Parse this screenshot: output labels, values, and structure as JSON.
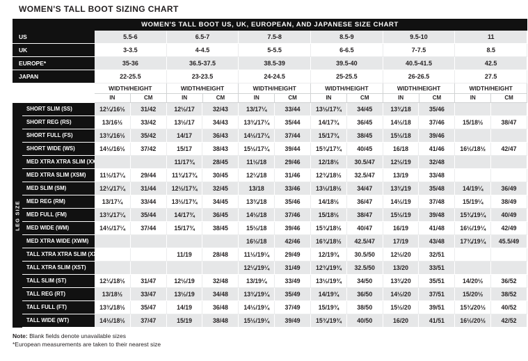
{
  "page": {
    "title": "WOMEN'S TALL BOOT SIZING CHART",
    "banner": "WOMEN'S TALL BOOT US, UK, EUROPEAN, AND JAPANESE SIZE CHART"
  },
  "size_rows": [
    {
      "label": "US",
      "values": [
        "5.5-6",
        "6.5-7",
        "7.5-8",
        "8.5-9",
        "9.5-10",
        "11"
      ]
    },
    {
      "label": "UK",
      "values": [
        "3-3.5",
        "4-4.5",
        "5-5.5",
        "6-6.5",
        "7-7.5",
        "8.5"
      ]
    },
    {
      "label": "EUROPE*",
      "values": [
        "35-36",
        "36.5-37.5",
        "38.5-39",
        "39.5-40",
        "40.5-41.5",
        "42.5"
      ]
    },
    {
      "label": "JAPAN",
      "values": [
        "22-25.5",
        "23-23.5",
        "24-24.5",
        "25-25.5",
        "26-26.5",
        "27.5"
      ]
    }
  ],
  "measure_header": {
    "group_label": "WIDTH/HEIGHT",
    "col_in": "IN",
    "col_cm": "CM",
    "groups": 6
  },
  "leg_size_label": "LEG SIZE",
  "leg_rows": [
    {
      "label": "SHORT SLIM (SS)",
      "cells": [
        "12¼/16½",
        "31/42",
        "12½/17",
        "32/43",
        "13/17¼",
        "33/44",
        "13½/17¾",
        "34/45",
        "13¾/18",
        "35/46",
        "",
        ""
      ]
    },
    {
      "label": "SHORT REG (RS)",
      "cells": [
        "13/16½",
        "33/42",
        "13½/17",
        "34/43",
        "13¾/17¼",
        "35/44",
        "14/17¾",
        "36/45",
        "14½/18",
        "37/46",
        "15/18½",
        "38/47"
      ]
    },
    {
      "label": "SHORT FULL (FS)",
      "cells": [
        "13¾/16½",
        "35/42",
        "14/17",
        "36/43",
        "14½/17¼",
        "37/44",
        "15/17¾",
        "38/45",
        "15½/18",
        "39/46",
        "",
        ""
      ]
    },
    {
      "label": "SHORT WIDE (WS)",
      "cells": [
        "14½/16½",
        "37/42",
        "15/17",
        "38/43",
        "15½/17¼",
        "39/44",
        "15¾/17¾",
        "40/45",
        "16/18",
        "41/46",
        "16½/18½",
        "42/47"
      ]
    },
    {
      "label": "MED XTRA XTRA SLIM (XXSM)",
      "cells": [
        "",
        "",
        "11/17¾",
        "28/45",
        "11½/18",
        "29/46",
        "12/18½",
        "30.5/47",
        "12½/19",
        "32/48",
        "",
        ""
      ]
    },
    {
      "label": "MED XTRA SLIM (XSM)",
      "cells": [
        "11½/17¼",
        "29/44",
        "11¾/17¾",
        "30/45",
        "12¼/18",
        "31/46",
        "12¾/18½",
        "32.5/47",
        "13/19",
        "33/48",
        "",
        ""
      ]
    },
    {
      "label": "MED SLIM (SM)",
      "cells": [
        "12¼/17¼",
        "31/44",
        "12½/17¾",
        "32/45",
        "13/18",
        "33/46",
        "13½/18½",
        "34/47",
        "13¾/19",
        "35/48",
        "14/19¼",
        "36/49"
      ]
    },
    {
      "label": "MED REG (RM)",
      "cells": [
        "13/17¼",
        "33/44",
        "13½/17¾",
        "34/45",
        "13¾/18",
        "35/46",
        "14/18½",
        "36/47",
        "14½/19",
        "37/48",
        "15/19¼",
        "38/49"
      ]
    },
    {
      "label": "MED FULL (FM)",
      "cells": [
        "13¾/17¼",
        "35/44",
        "14/17¾",
        "36/45",
        "14½/18",
        "37/46",
        "15/18½",
        "38/47",
        "15½/19",
        "39/48",
        "15¾/19¼",
        "40/49"
      ]
    },
    {
      "label": "MED WIDE (WM)",
      "cells": [
        "14½/17¼",
        "37/44",
        "15/17¾",
        "38/45",
        "15½/18",
        "39/46",
        "15¾/18½",
        "40/47",
        "16/19",
        "41/48",
        "16½/19¼",
        "42/49"
      ]
    },
    {
      "label": "MED XTRA WIDE (XWM)",
      "cells": [
        "",
        "",
        "",
        "",
        "16½/18",
        "42/46",
        "16¾/18½",
        "42.5/47",
        "17/19",
        "43/48",
        "17¾/19¼",
        "45.5/49"
      ]
    },
    {
      "label": "TALL XTRA XTRA SLIM (XXST)",
      "cells": [
        "",
        "",
        "11/19",
        "28/48",
        "11½/19¼",
        "29/49",
        "12/19¾",
        "30.5/50",
        "12½/20",
        "32/51",
        "",
        ""
      ]
    },
    {
      "label": "TALL XTRA SLIM (XST)",
      "cells": [
        "",
        "",
        "",
        "",
        "12¼/19¼",
        "31/49",
        "12¾/19¾",
        "32.5/50",
        "13/20",
        "33/51",
        "",
        ""
      ]
    },
    {
      "label": "TALL SLIM (ST)",
      "cells": [
        "12¼/18½",
        "31/47",
        "12½/19",
        "32/48",
        "13/19¼",
        "33/49",
        "13½/19¾",
        "34/50",
        "13¾/20",
        "35/51",
        "14/20½",
        "36/52"
      ]
    },
    {
      "label": "TALL REG (RT)",
      "cells": [
        "13/18½",
        "33/47",
        "13½/19",
        "34/48",
        "13¾/19¼",
        "35/49",
        "14/19¾",
        "36/50",
        "14½/20",
        "37/51",
        "15/20½",
        "38/52"
      ]
    },
    {
      "label": "TALL FULL (FT)",
      "cells": [
        "13¾/18½",
        "35/47",
        "14/19",
        "36/48",
        "14½/19¼",
        "37/49",
        "15/19¾",
        "38/50",
        "15½/20",
        "39/51",
        "15¾/20½",
        "40/52"
      ]
    },
    {
      "label": "TALL WIDE (WT)",
      "cells": [
        "14½/18½",
        "37/47",
        "15/19",
        "38/48",
        "15½/19¼",
        "39/49",
        "15¾/19¾",
        "40/50",
        "16/20",
        "41/51",
        "16½/20½",
        "42/52"
      ]
    }
  ],
  "notes": {
    "note_label": "Note:",
    "note_text": " Blank fields denote unavailable sizes",
    "footnote": "*European measurements are taken to their nearest size"
  },
  "colors": {
    "dark": "#111111",
    "row_gray": "#e6e7e8",
    "row_white": "#ffffff"
  }
}
